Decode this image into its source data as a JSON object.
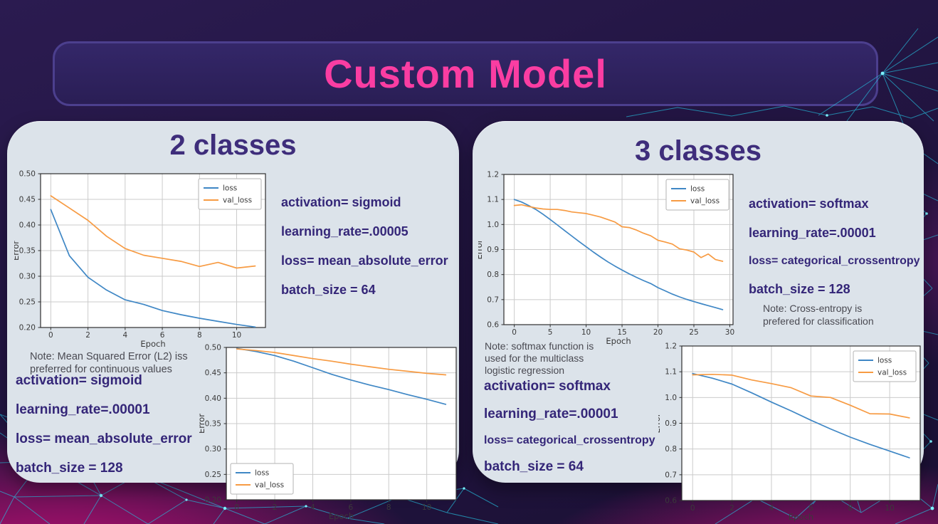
{
  "title": {
    "text": "Custom Model"
  },
  "left_panel": {
    "heading": "2 classes",
    "top_params": [
      "activation= sigmoid",
      "learning_rate=.00005",
      "loss= mean_absolute_error",
      "batch_size = 64"
    ],
    "note_lines": [
      "Note: Mean Squared Error (L2) iss",
      "preferred for continuous values"
    ],
    "bottom_params": [
      "activation= sigmoid",
      "learning_rate=.00001",
      "loss= mean_absolute_error",
      "batch_size = 128"
    ]
  },
  "right_panel": {
    "heading": "3 classes",
    "top_params": [
      "activation= softmax",
      "learning_rate=.00001",
      "loss= categorical_crossentropy",
      "batch_size = 128"
    ],
    "top_note_lines": [
      "Note: Cross-entropy is",
      "prefered for classification"
    ],
    "bottom_note_lines": [
      "Note: softmax function is",
      "used for the multiclass",
      "logistic regression"
    ],
    "bottom_params": [
      "activation= softmax",
      "learning_rate=.00001",
      "loss= categorical_crossentropy",
      "batch_size = 64"
    ]
  },
  "colors": {
    "accent_pink": "#fa3da2",
    "panel_bg": "#dce3ea",
    "heading_purple": "#3e2d7b",
    "param_purple": "#342678",
    "background_magenta": "#b01173",
    "background_indigo": "#221542",
    "constellation_cyan": "#26c3e2",
    "chart_blue": "#3f87c5",
    "chart_orange": "#f79b43"
  },
  "chart_data": [
    {
      "id": "c1",
      "type": "line",
      "title": "",
      "xlabel": "Epoch",
      "ylabel": "Error",
      "legend": "upper right",
      "grid": true,
      "x": [
        0,
        1,
        2,
        3,
        4,
        5,
        6,
        7,
        8,
        9,
        10,
        11
      ],
      "series": [
        {
          "name": "loss",
          "color": "#3f87c5",
          "values": [
            0.43,
            0.34,
            0.298,
            0.273,
            0.254,
            0.245,
            0.233,
            0.225,
            0.218,
            0.212,
            0.206,
            0.201
          ]
        },
        {
          "name": "val_loss",
          "color": "#f79b43",
          "values": [
            0.457,
            0.433,
            0.409,
            0.378,
            0.354,
            0.341,
            0.335,
            0.329,
            0.319,
            0.327,
            0.316,
            0.32
          ]
        }
      ],
      "ylim": [
        0.2,
        0.5
      ],
      "yticks": [
        0.2,
        0.25,
        0.3,
        0.35,
        0.4,
        0.45,
        0.5
      ],
      "ytick_labels": [
        "0.20",
        "0.25",
        "0.30",
        "0.35",
        "0.40",
        "0.45",
        "0.50"
      ],
      "xlim": [
        -0.55,
        11.55
      ],
      "xticks": [
        0,
        2,
        4,
        6,
        8,
        10
      ],
      "xtick_labels": [
        "0",
        "2",
        "4",
        "6",
        "8",
        "10"
      ]
    },
    {
      "id": "c2",
      "type": "line",
      "title": "",
      "xlabel": "Epoch",
      "ylabel": "Error",
      "legend": "lower left",
      "grid": true,
      "x": [
        0,
        1,
        2,
        3,
        4,
        5,
        6,
        7,
        8,
        9,
        10,
        11
      ],
      "series": [
        {
          "name": "loss",
          "color": "#3f87c5",
          "values": [
            0.498,
            0.492,
            0.484,
            0.473,
            0.46,
            0.447,
            0.436,
            0.426,
            0.417,
            0.407,
            0.398,
            0.388
          ]
        },
        {
          "name": "val_loss",
          "color": "#f79b43",
          "values": [
            0.497,
            0.494,
            0.49,
            0.484,
            0.478,
            0.473,
            0.467,
            0.462,
            0.457,
            0.453,
            0.449,
            0.446
          ]
        }
      ],
      "ylim": [
        0.2,
        0.5
      ],
      "yticks": [
        0.2,
        0.25,
        0.3,
        0.35,
        0.4,
        0.45,
        0.5
      ],
      "ytick_labels": [
        "0.20",
        "0.25",
        "0.30",
        "0.35",
        "0.40",
        "0.45",
        "0.50"
      ],
      "xlim": [
        -0.55,
        11.55
      ],
      "xticks": [
        0,
        2,
        4,
        6,
        8,
        10
      ],
      "xtick_labels": [
        "0",
        "2",
        "4",
        "6",
        "8",
        "10"
      ]
    },
    {
      "id": "c3",
      "type": "line",
      "title": "",
      "xlabel": "Epoch",
      "ylabel": "Error",
      "legend": "upper right",
      "grid": true,
      "x": [
        0,
        1,
        2,
        3,
        4,
        5,
        6,
        7,
        8,
        9,
        10,
        11,
        12,
        13,
        14,
        15,
        16,
        17,
        18,
        19,
        20,
        21,
        22,
        23,
        24,
        25,
        26,
        27,
        28,
        29
      ],
      "series": [
        {
          "name": "loss",
          "color": "#3f87c5",
          "values": [
            1.1,
            1.09,
            1.076,
            1.06,
            1.041,
            1.02,
            0.998,
            0.976,
            0.954,
            0.932,
            0.911,
            0.89,
            0.87,
            0.851,
            0.834,
            0.818,
            0.803,
            0.789,
            0.776,
            0.764,
            0.748,
            0.735,
            0.722,
            0.711,
            0.701,
            0.692,
            0.684,
            0.676,
            0.668,
            0.66
          ]
        },
        {
          "name": "val_loss",
          "color": "#f79b43",
          "values": [
            1.076,
            1.079,
            1.072,
            1.066,
            1.062,
            1.06,
            1.06,
            1.056,
            1.05,
            1.047,
            1.044,
            1.037,
            1.03,
            1.02,
            1.01,
            0.991,
            0.988,
            0.978,
            0.965,
            0.955,
            0.937,
            0.93,
            0.922,
            0.903,
            0.898,
            0.89,
            0.868,
            0.882,
            0.86,
            0.853
          ]
        }
      ],
      "ylim": [
        0.6,
        1.2
      ],
      "yticks": [
        0.6,
        0.7,
        0.8,
        0.9,
        1.0,
        1.1,
        1.2
      ],
      "ytick_labels": [
        "0.6",
        "0.7",
        "0.8",
        "0.9",
        "1.0",
        "1.1",
        "1.2"
      ],
      "xlim": [
        -1.45,
        30.45
      ],
      "xticks": [
        0,
        5,
        10,
        15,
        20,
        25,
        30
      ],
      "xtick_labels": [
        "0",
        "5",
        "10",
        "15",
        "20",
        "25",
        "30"
      ]
    },
    {
      "id": "c4",
      "type": "line",
      "title": "",
      "xlabel": "Epoch",
      "ylabel": "Error",
      "legend": "upper right",
      "grid": true,
      "x": [
        0,
        1,
        2,
        3,
        4,
        5,
        6,
        7,
        8,
        9,
        10,
        11
      ],
      "series": [
        {
          "name": "loss",
          "color": "#3f87c5",
          "values": [
            1.093,
            1.075,
            1.052,
            1.018,
            0.982,
            0.948,
            0.912,
            0.878,
            0.846,
            0.818,
            0.792,
            0.766
          ]
        },
        {
          "name": "val_loss",
          "color": "#f79b43",
          "values": [
            1.088,
            1.09,
            1.087,
            1.068,
            1.054,
            1.038,
            1.006,
            1.0,
            0.97,
            0.937,
            0.936,
            0.921
          ]
        }
      ],
      "ylim": [
        0.6,
        1.2
      ],
      "yticks": [
        0.6,
        0.7,
        0.8,
        0.9,
        1.0,
        1.1,
        1.2
      ],
      "ytick_labels": [
        "0.6",
        "0.7",
        "0.8",
        "0.9",
        "1.0",
        "1.1",
        "1.2"
      ],
      "xlim": [
        -0.55,
        11.55
      ],
      "xticks": [
        0,
        2,
        4,
        6,
        8,
        10
      ],
      "xtick_labels": [
        "0",
        "2",
        "4",
        "6",
        "8",
        "10"
      ]
    }
  ]
}
